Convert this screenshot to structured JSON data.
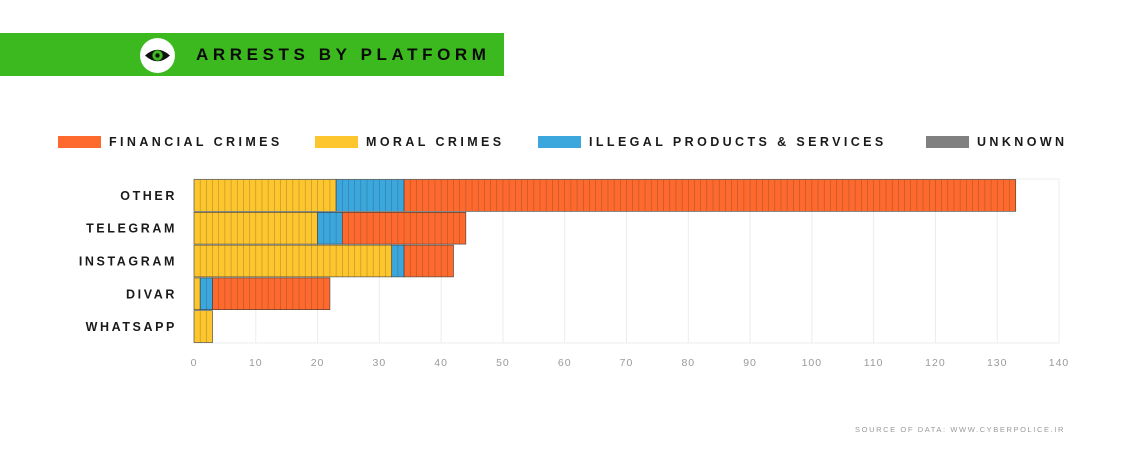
{
  "header": {
    "title": "ARRESTS BY PLATFORM",
    "banner_color": "#3cb91f",
    "icon": "eye-icon"
  },
  "source": "SOURCE OF DATA: WWW.CYBERPOLICE.IR",
  "chart_data": {
    "type": "bar",
    "orientation": "horizontal",
    "stacked": true,
    "title": "ARRESTS BY PLATFORM",
    "xlabel": "",
    "ylabel": "",
    "xlim": [
      0,
      140
    ],
    "xticks": [
      0,
      10,
      20,
      30,
      40,
      50,
      60,
      70,
      80,
      90,
      100,
      110,
      120,
      130,
      140
    ],
    "grid": true,
    "legend_position": "top",
    "categories": [
      "OTHER",
      "TELEGRAM",
      "INSTAGRAM",
      "DIVAR",
      "WHATSAPP"
    ],
    "series": [
      {
        "name": "MORAL CRIMES",
        "color": "#fec62e",
        "values": [
          23,
          20,
          32,
          1,
          3
        ]
      },
      {
        "name": "ILLEGAL PRODUCTS & SERVICES",
        "color": "#3ba7dc",
        "values": [
          11,
          4,
          2,
          2,
          0
        ]
      },
      {
        "name": "FINANCIAL CRIMES",
        "color": "#fe6a2e",
        "values": [
          99,
          20,
          8,
          19,
          0
        ]
      },
      {
        "name": "UNKNOWN",
        "color": "#808080",
        "values": [
          0,
          0,
          0,
          0,
          0
        ]
      }
    ],
    "legend_order": [
      "FINANCIAL CRIMES",
      "MORAL CRIMES",
      "ILLEGAL PRODUCTS & SERVICES",
      "UNKNOWN"
    ]
  }
}
